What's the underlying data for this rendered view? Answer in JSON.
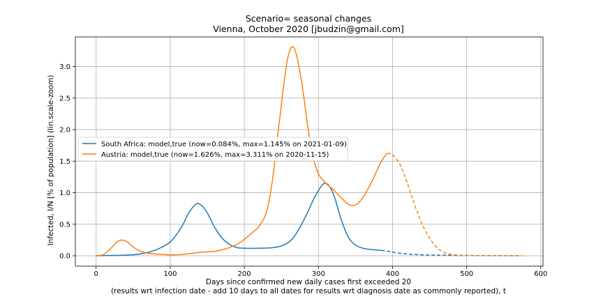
{
  "chart_data": {
    "type": "line",
    "title": "Scenario= seasonal changes",
    "subtitle": "Vienna, October 2020 [jbudzin@gmail.com]",
    "xlabel": "Days since confirmed new daily cases first exceeded 20",
    "xlabel2": "(results wrt infection date - add 10 days to all dates for results wrt diagnosis date as commonly reported), t",
    "ylabel": "Infected, I/N [% of population] (lin.scale-zoom)",
    "xlim": [
      -28,
      603
    ],
    "ylim": [
      -0.165,
      3.47
    ],
    "xticks": [
      0,
      100,
      200,
      300,
      400,
      500,
      600
    ],
    "yticks": [
      0.0,
      0.5,
      1.0,
      1.5,
      2.0,
      2.5,
      3.0
    ],
    "xtick_labels": [
      "0",
      "100",
      "200",
      "300",
      "400",
      "500",
      "600"
    ],
    "ytick_labels": [
      "0.0",
      "0.5",
      "1.0",
      "1.5",
      "2.0",
      "2.5",
      "3.0"
    ],
    "grid": true,
    "legend_position": "center-left",
    "series": [
      {
        "name": "South Africa: model,true (now=0.084%, max=1.145% on 2021-01-09)",
        "color": "#1f77b4",
        "solid": [
          [
            0,
            0.0
          ],
          [
            20,
            0.005
          ],
          [
            40,
            0.01
          ],
          [
            60,
            0.03
          ],
          [
            80,
            0.09
          ],
          [
            100,
            0.22
          ],
          [
            115,
            0.45
          ],
          [
            125,
            0.68
          ],
          [
            135,
            0.82
          ],
          [
            142,
            0.8
          ],
          [
            150,
            0.68
          ],
          [
            160,
            0.45
          ],
          [
            170,
            0.28
          ],
          [
            180,
            0.18
          ],
          [
            190,
            0.13
          ],
          [
            200,
            0.12
          ],
          [
            220,
            0.12
          ],
          [
            240,
            0.13
          ],
          [
            255,
            0.18
          ],
          [
            265,
            0.27
          ],
          [
            275,
            0.45
          ],
          [
            285,
            0.68
          ],
          [
            295,
            0.93
          ],
          [
            305,
            1.12
          ],
          [
            310,
            1.145
          ],
          [
            315,
            1.1
          ],
          [
            322,
            0.92
          ],
          [
            330,
            0.6
          ],
          [
            340,
            0.3
          ],
          [
            350,
            0.17
          ],
          [
            360,
            0.12
          ],
          [
            370,
            0.1
          ],
          [
            385,
            0.085
          ]
        ],
        "dashed": [
          [
            385,
            0.085
          ],
          [
            395,
            0.07
          ],
          [
            410,
            0.04
          ],
          [
            430,
            0.02
          ],
          [
            460,
            0.01
          ],
          [
            500,
            0.005
          ],
          [
            540,
            0.002
          ],
          [
            570,
            0.0
          ]
        ]
      },
      {
        "name": "Austria: model,true (now=1.626%, max=3.311% on 2020-11-15)",
        "color": "#ff7f0e",
        "solid": [
          [
            0,
            0.0
          ],
          [
            10,
            0.02
          ],
          [
            20,
            0.12
          ],
          [
            28,
            0.22
          ],
          [
            35,
            0.25
          ],
          [
            42,
            0.22
          ],
          [
            50,
            0.14
          ],
          [
            60,
            0.07
          ],
          [
            70,
            0.04
          ],
          [
            85,
            0.025
          ],
          [
            100,
            0.015
          ],
          [
            115,
            0.02
          ],
          [
            130,
            0.04
          ],
          [
            145,
            0.06
          ],
          [
            160,
            0.07
          ],
          [
            175,
            0.11
          ],
          [
            190,
            0.18
          ],
          [
            200,
            0.26
          ],
          [
            210,
            0.36
          ],
          [
            220,
            0.47
          ],
          [
            230,
            0.7
          ],
          [
            238,
            1.2
          ],
          [
            245,
            1.9
          ],
          [
            252,
            2.6
          ],
          [
            258,
            3.1
          ],
          [
            264,
            3.31
          ],
          [
            270,
            3.2
          ],
          [
            278,
            2.7
          ],
          [
            285,
            2.1
          ],
          [
            292,
            1.6
          ],
          [
            300,
            1.3
          ],
          [
            310,
            1.15
          ],
          [
            320,
            1.05
          ],
          [
            330,
            0.93
          ],
          [
            340,
            0.82
          ],
          [
            348,
            0.8
          ],
          [
            355,
            0.85
          ],
          [
            365,
            1.02
          ],
          [
            375,
            1.25
          ],
          [
            385,
            1.5
          ],
          [
            393,
            1.626
          ]
        ],
        "dashed": [
          [
            393,
            1.626
          ],
          [
            400,
            1.6
          ],
          [
            410,
            1.45
          ],
          [
            420,
            1.15
          ],
          [
            430,
            0.8
          ],
          [
            440,
            0.5
          ],
          [
            450,
            0.28
          ],
          [
            460,
            0.13
          ],
          [
            470,
            0.05
          ],
          [
            480,
            0.02
          ],
          [
            500,
            0.005
          ],
          [
            530,
            0.001
          ],
          [
            575,
            0.0
          ]
        ]
      }
    ]
  }
}
